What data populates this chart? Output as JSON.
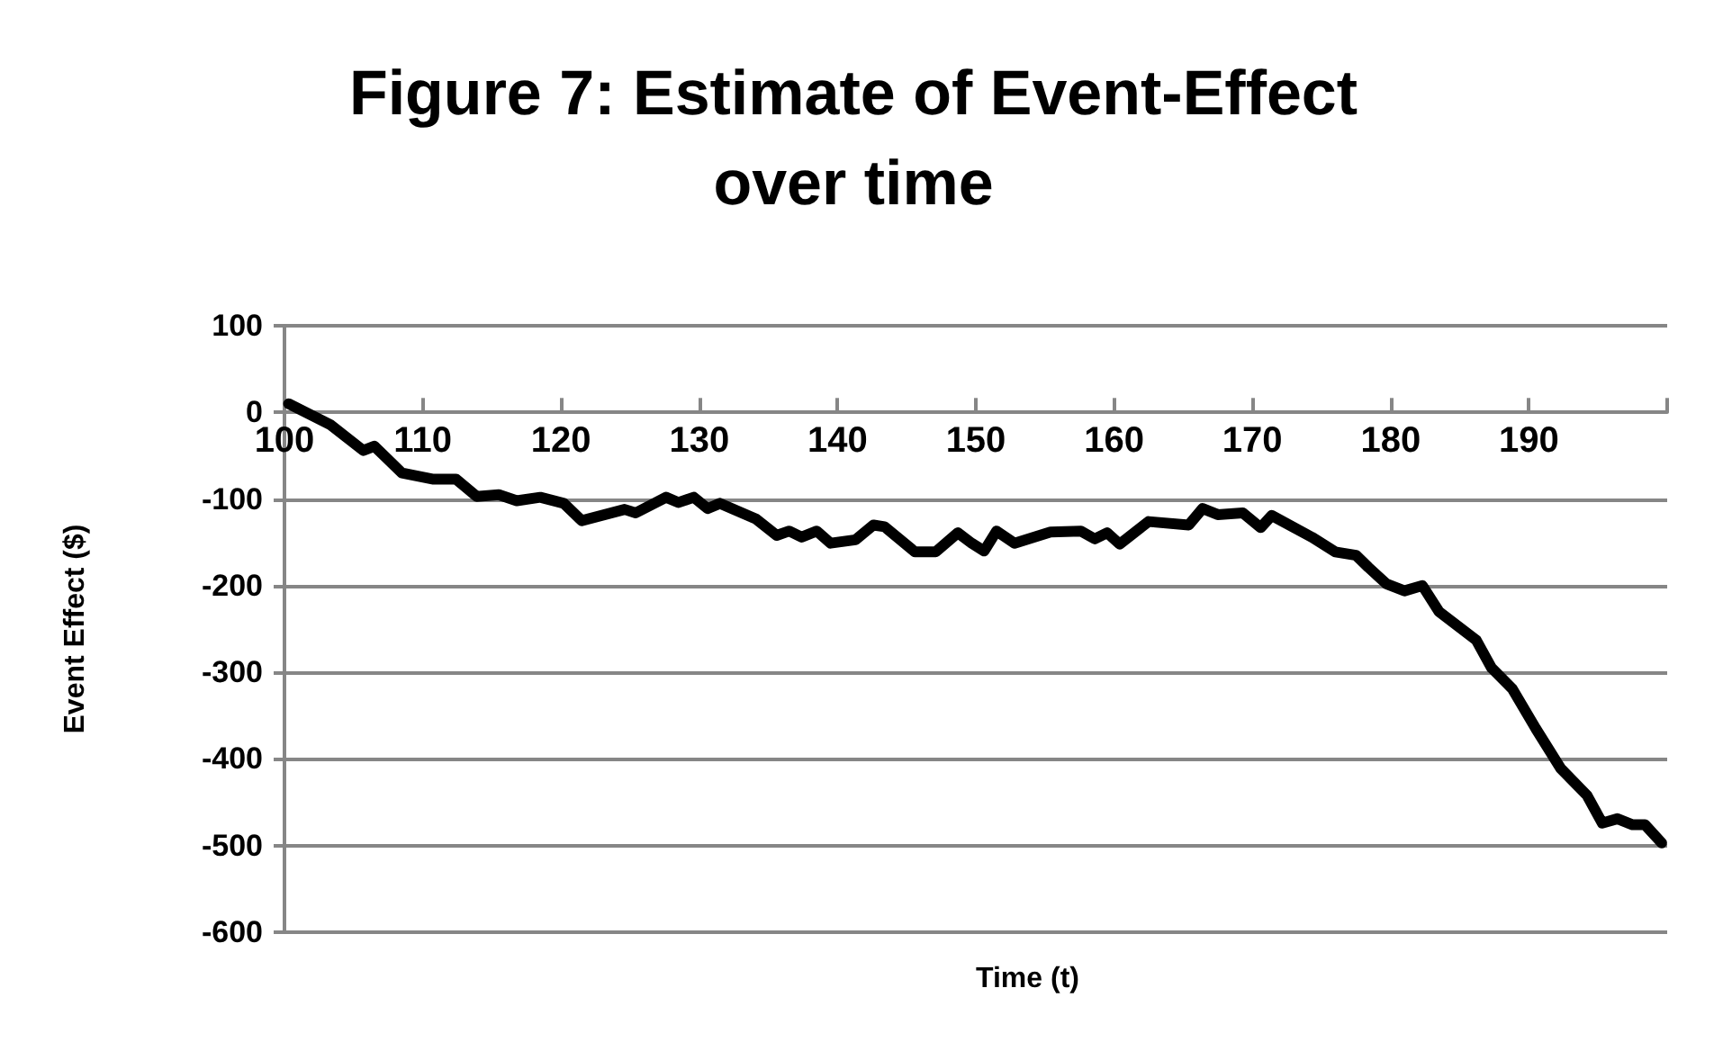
{
  "chart_data": {
    "type": "line",
    "title": "Figure 7: Estimate of Event-Effect\nover time",
    "xlabel": "Time (t)",
    "ylabel": "Event Effect ($)",
    "xlim": [
      100,
      200
    ],
    "xticks": [
      100,
      110,
      120,
      130,
      140,
      150,
      160,
      170,
      180,
      190,
      {
        "value": 200,
        "label": null
      }
    ],
    "ylim": [
      -600,
      100
    ],
    "yticks": [
      -600,
      -500,
      -400,
      -300,
      -200,
      -100,
      0,
      100
    ],
    "grid": "y",
    "marker": "none",
    "line_style": "solid",
    "series": [
      {
        "color": "#000000",
        "x": [
          100.3,
          103.3,
          105.7,
          106.5,
          108.5,
          110.7,
          112.4,
          113.9,
          115.5,
          116.8,
          118.5,
          120.2,
          121.5,
          124.6,
          125.4,
          127.6,
          128.5,
          129.6,
          130.6,
          131.5,
          134.1,
          135.6,
          136.5,
          137.4,
          138.5,
          139.5,
          141.3,
          142.6,
          143.4,
          145.6,
          147.1,
          148.7,
          149.7,
          150.6,
          151.5,
          152.8,
          155.4,
          157.6,
          158.6,
          159.5,
          160.4,
          162.5,
          165.4,
          166.4,
          167.5,
          169.3,
          170.6,
          171.4,
          174.3,
          176.0,
          177.5,
          178.4,
          179.7,
          181.0,
          182.3,
          183.5,
          186.2,
          187.3,
          188.8,
          190.5,
          192.3,
          194.2,
          195.3,
          196.4,
          197.5,
          198.4,
          199.6
        ],
        "values": [
          10,
          -14,
          -44,
          -39,
          -70,
          -77,
          -77,
          -97,
          -95,
          -102,
          -98,
          -105,
          -125,
          -112,
          -116,
          -98,
          -104,
          -98,
          -111,
          -105,
          -123,
          -142,
          -137,
          -144,
          -137,
          -151,
          -147,
          -130,
          -132,
          -161,
          -161,
          -139,
          -151,
          -160,
          -137,
          -151,
          -138,
          -137,
          -146,
          -139,
          -152,
          -126,
          -130,
          -111,
          -118,
          -116,
          -133,
          -119,
          -144,
          -161,
          -165,
          -179,
          -198,
          -206,
          -200,
          -230,
          -263,
          -295,
          -319,
          -365,
          -411,
          -442,
          -474,
          -469,
          -476,
          -476,
          -497
        ]
      }
    ]
  }
}
